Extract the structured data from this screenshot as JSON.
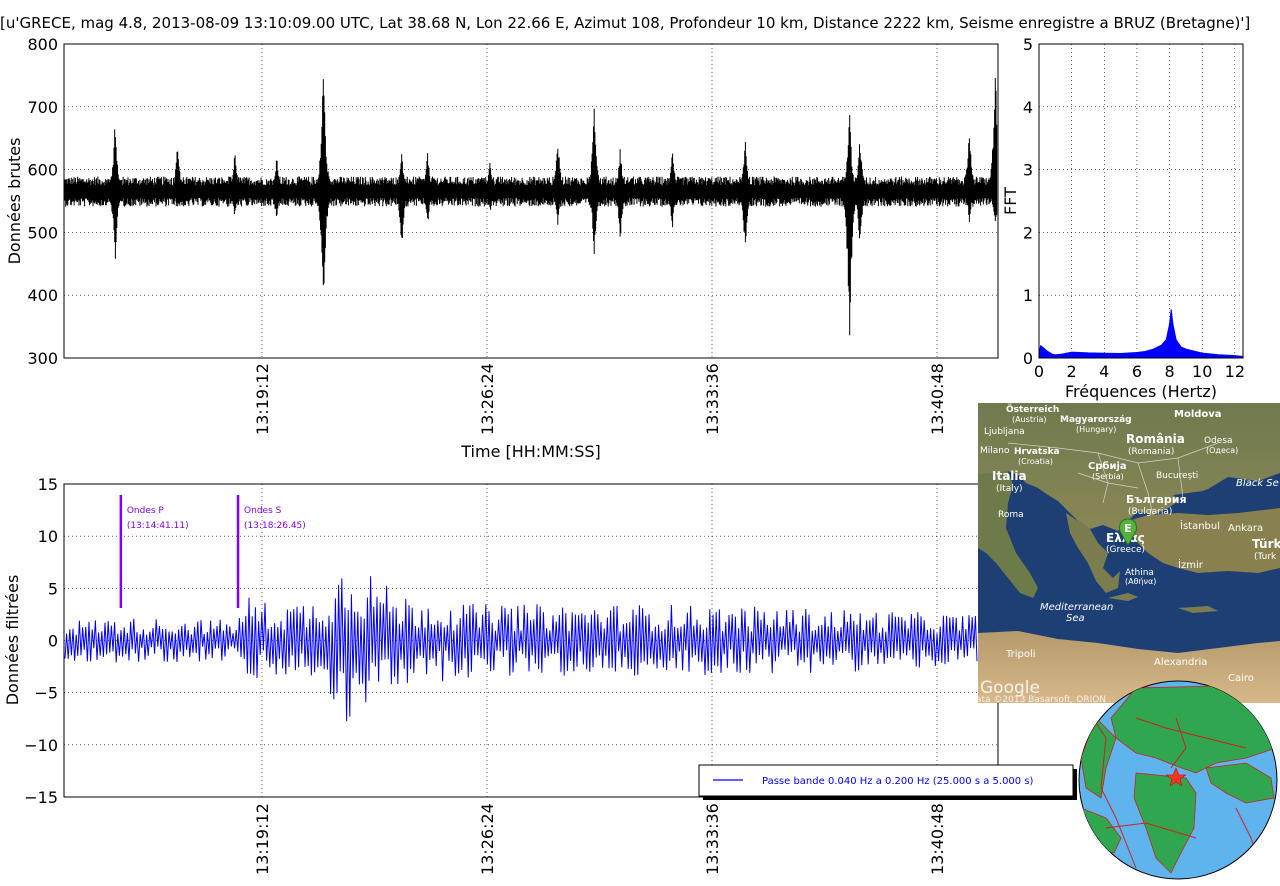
{
  "title": "[u'GRECE, mag 4.8, 2013-08-09 13:10:09.00 UTC, Lat 38.68 N, Lon 22.66 E, Azimut 108, Profondeur 10 km, Distance 2222 km, Seisme enregistre a BRUZ (Bretagne)']",
  "chart_data": [
    {
      "type": "line",
      "ylabel": "Données brutes",
      "xlabel": "Time [HH:MM:SS]",
      "ylim": [
        300,
        800
      ],
      "yticks": [
        "300",
        "400",
        "500",
        "600",
        "700",
        "800"
      ],
      "xticks": [
        "13:19:12",
        "13:26:24",
        "13:33:36",
        "13:40:48"
      ],
      "grid": true,
      "color": "#000000",
      "baseline": 565,
      "events": [
        {
          "time": "13:14:30",
          "max": 685,
          "min": 445
        },
        {
          "time": "13:16:30",
          "max": 648,
          "min": 540
        },
        {
          "time": "13:18:20",
          "max": 632,
          "min": 520
        },
        {
          "time": "13:19:40",
          "max": 628,
          "min": 510
        },
        {
          "time": "13:21:10",
          "max": 784,
          "min": 356
        },
        {
          "time": "13:23:40",
          "max": 635,
          "min": 462
        },
        {
          "time": "13:24:30",
          "max": 632,
          "min": 505
        },
        {
          "time": "13:26:30",
          "max": 618,
          "min": 528
        },
        {
          "time": "13:28:40",
          "max": 660,
          "min": 505
        },
        {
          "time": "13:29:50",
          "max": 719,
          "min": 452
        },
        {
          "time": "13:30:40",
          "max": 640,
          "min": 482
        },
        {
          "time": "13:32:20",
          "max": 640,
          "min": 502
        },
        {
          "time": "13:34:40",
          "max": 658,
          "min": 455
        },
        {
          "time": "13:38:00",
          "max": 703,
          "min": 300
        },
        {
          "time": "13:38:20",
          "max": 660,
          "min": 462
        },
        {
          "time": "13:41:50",
          "max": 678,
          "min": 512
        },
        {
          "time": "13:42:40",
          "max": 776,
          "min": 498
        }
      ]
    },
    {
      "type": "line",
      "ylabel": "FFT",
      "xlabel": "Fréquences (Hertz)",
      "xlim": [
        0,
        12.5
      ],
      "ylim": [
        0,
        5
      ],
      "xticks": [
        "0",
        "2",
        "4",
        "6",
        "8",
        "10",
        "12"
      ],
      "yticks": [
        "0",
        "1",
        "2",
        "3",
        "4",
        "5"
      ],
      "grid": true,
      "color": "#0000ff",
      "x": [
        0,
        0.1,
        0.2,
        0.3,
        0.5,
        0.8,
        1.0,
        1.5,
        2.0,
        3.0,
        4.0,
        5.0,
        6.0,
        6.5,
        7.0,
        7.5,
        7.8,
        8.0,
        8.1,
        8.2,
        8.4,
        8.7,
        9.0,
        10.0,
        11.0,
        12.0,
        12.5
      ],
      "y": [
        0.05,
        0.2,
        0.18,
        0.15,
        0.1,
        0.06,
        0.05,
        0.06,
        0.09,
        0.08,
        0.07,
        0.07,
        0.08,
        0.1,
        0.14,
        0.2,
        0.3,
        0.55,
        0.78,
        0.55,
        0.3,
        0.18,
        0.14,
        0.08,
        0.05,
        0.04,
        0.03
      ]
    },
    {
      "type": "line",
      "ylabel": "Données filtrées",
      "xlabel": "Time [HH:MM:SS]",
      "ylim": [
        -15,
        15
      ],
      "yticks": [
        "−15",
        "−10",
        "−5",
        "0",
        "5",
        "10",
        "15"
      ],
      "xticks": [
        "13:19:12",
        "13:26:24",
        "13:33:36",
        "13:40:48"
      ],
      "grid": true,
      "color": "#0000ff",
      "legend": {
        "label": "Passe bande 0.040 Hz a 0.200 Hz (25.000 s a 5.000 s)",
        "placement": "lower right"
      },
      "annotations": [
        {
          "label": "Ondes P",
          "time_label": "(13:14:41.11)",
          "time": "13:14:41"
        },
        {
          "label": "Ondes S",
          "time_label": "(13:18:26.45)",
          "time": "13:18:26"
        }
      ],
      "annotation_color": "#7f00ff",
      "envelope": [
        {
          "time": "13:12:00",
          "amp": 1.8
        },
        {
          "time": "13:14:41",
          "amp": 2.2
        },
        {
          "time": "13:18:26",
          "amp": 2.0
        },
        {
          "time": "13:18:40",
          "amp": 4.5
        },
        {
          "time": "13:19:30",
          "amp": 3.5
        },
        {
          "time": "13:21:00",
          "amp": 4.0
        },
        {
          "time": "13:22:00",
          "amp": 8.5
        },
        {
          "time": "13:23:30",
          "amp": 4.5
        },
        {
          "time": "13:26:00",
          "amp": 3.5
        },
        {
          "time": "13:32:00",
          "amp": 3.5
        },
        {
          "time": "13:38:00",
          "amp": 3.0
        },
        {
          "time": "13:42:00",
          "amp": 2.5
        }
      ]
    }
  ],
  "map": {
    "labels": [
      "Österreich",
      "(Austria)",
      "Magyarország",
      "(Hungary)",
      "Moldova",
      "Ljubljana",
      "România",
      "(Romania)",
      "Odesa",
      "(Одеса)",
      "Milano",
      "Hrvatska",
      "(Croatia)",
      "Србија",
      "(Serbia)",
      "București",
      "Italia",
      "(Italy)",
      "България",
      "(Bulgaria)",
      "Black Se",
      "Roma",
      "Ελλάς",
      "(Greece)",
      "İstanbul",
      "Ankara",
      "Türk",
      "(Turk",
      "İzmir",
      "Athina",
      "(Αθήνα)",
      "Mediterranean",
      "Sea",
      "Tripoli",
      "Alexandria",
      "Cairo"
    ],
    "marker": "E",
    "logo": "Google",
    "attribution": "ata ©2013 Basarsoft, ORION"
  },
  "globe": {
    "description_marker": "epicenter-star"
  }
}
